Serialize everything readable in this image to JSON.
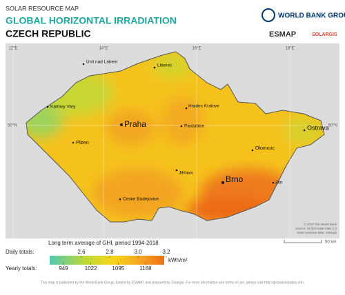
{
  "header": {
    "kicker": "SOLAR RESOURCE MAP",
    "title": "GLOBAL HORIZONTAL IRRADIATION",
    "subtitle": "CZECH REPUBLIC"
  },
  "logos": {
    "world_bank": "WORLD BANK GROUP",
    "esmap": "ESMAP",
    "solargis": "SOLARGIS"
  },
  "graticule": {
    "longitudes": [
      "12°E",
      "14°E",
      "16°E",
      "18°E"
    ],
    "latitude_left": "50°N",
    "latitude_right": "50°N"
  },
  "cities": [
    "Liberec",
    "Usti nad Labem",
    "Karlovy Vary",
    "Hradec Kralove",
    "Praha",
    "Pardubice",
    "Plzen",
    "Olomouc",
    "Ostrava",
    "Jihlava",
    "Brno",
    "Zlin",
    "Ceske Budejovice"
  ],
  "credits": [
    "© 2019 The World Bank",
    "Source: Global Solar Atlas 2.0",
    "Solar resource data: Solargis"
  ],
  "scale": "50 km",
  "legend": {
    "title": "Long term average of GHI, period 1994-2018",
    "daily_label": "Daily totals:",
    "yearly_label": "Yearly totals:",
    "daily_ticks": [
      2.6,
      2.8,
      {
        "value": 3,
        "label": "3.0"
      },
      3.2
    ],
    "yearly_ticks": [
      949,
      1022,
      1095,
      1168
    ],
    "unit": "kWh/m²"
  },
  "footer": "This map is published by the World Bank Group, funded by ESMAP, and prepared by Solargis. For more information and terms of use, please visit http://globalsolaratlas.info."
}
